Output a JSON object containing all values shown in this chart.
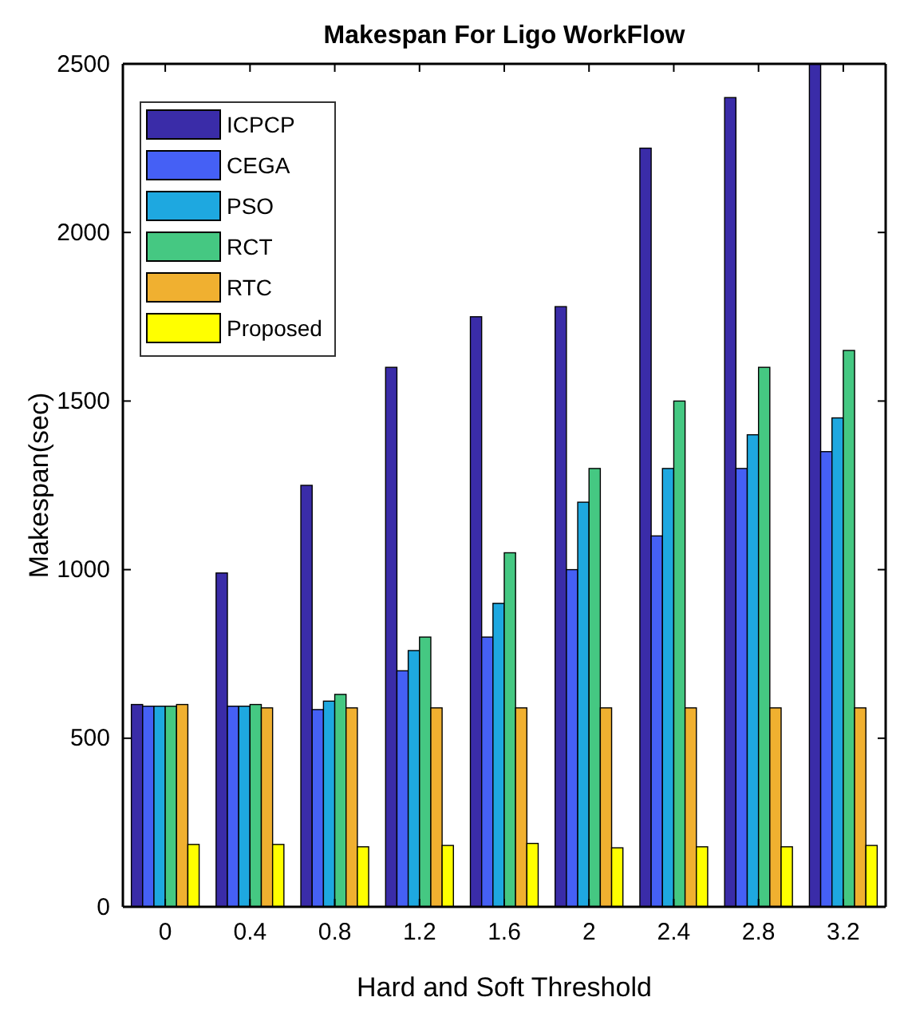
{
  "chart_data": {
    "type": "bar",
    "title": "Makespan For Ligo WorkFlow",
    "xlabel": "Hard and Soft Threshold",
    "ylabel": "Makespan(sec)",
    "categories": [
      "0",
      "0.4",
      "0.8",
      "1.2",
      "1.6",
      "2",
      "2.4",
      "2.8",
      "3.2"
    ],
    "series": [
      {
        "name": "ICPCP",
        "color": "#3a2ca8",
        "values": [
          600,
          990,
          1250,
          1600,
          1750,
          1780,
          2250,
          2400,
          2500
        ]
      },
      {
        "name": "CEGA",
        "color": "#4560f5",
        "values": [
          595,
          595,
          585,
          700,
          800,
          1000,
          1100,
          1300,
          1350
        ]
      },
      {
        "name": "PSO",
        "color": "#1ea8e0",
        "values": [
          595,
          595,
          610,
          760,
          900,
          1200,
          1300,
          1400,
          1450
        ]
      },
      {
        "name": "RCT",
        "color": "#45c882",
        "values": [
          595,
          600,
          630,
          800,
          1050,
          1300,
          1500,
          1600,
          1650
        ]
      },
      {
        "name": "RTC",
        "color": "#f0b030",
        "values": [
          600,
          590,
          590,
          590,
          590,
          590,
          590,
          590,
          590
        ]
      },
      {
        "name": "Proposed",
        "color": "#ffff00",
        "values": [
          185,
          185,
          178,
          182,
          188,
          175,
          178,
          178,
          182
        ]
      }
    ],
    "ylim": [
      0,
      2500
    ],
    "yticks": [
      0,
      500,
      1000,
      1500,
      2000,
      2500
    ],
    "grid": false,
    "legend": "top left"
  }
}
